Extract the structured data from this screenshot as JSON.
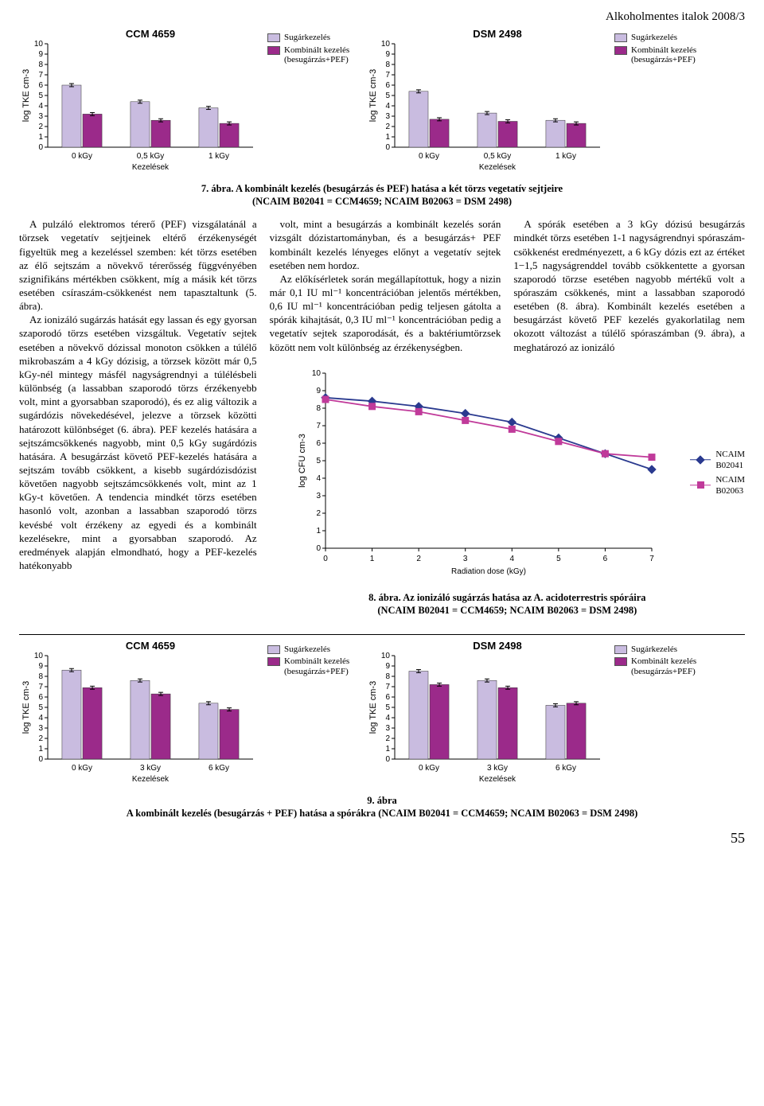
{
  "header": {
    "title": "Alkoholmentes italok 2008/3"
  },
  "page_number": "55",
  "colors": {
    "bar_light": "#c9bce0",
    "bar_dark": "#9b2a8a",
    "line_blue": "#2a3a8f",
    "line_magenta": "#c03a9a",
    "marker_blue": "#2a3a8f",
    "marker_magenta": "#c03a9a",
    "grid": "#000000",
    "bg": "#ffffff"
  },
  "legend_bar": {
    "item1": "Sugárkezelés",
    "item2": "Kombinált kezelés",
    "item2b": "(besugárzás+PEF)"
  },
  "fig7": {
    "caption1": "7. ábra. A kombinált kezelés (besugárzás és PEF) hatása a két törzs vegetatív sejtjeire",
    "caption2": "(NCAIM B02041 = CCM4659; NCAIM B02063 = DSM 2498)",
    "left": {
      "title": "CCM 4659",
      "ylabel": "log TKE cm-3",
      "xlabel": "Kezelések",
      "categories": [
        "0 kGy",
        "0,5 kGy",
        "1 kGy"
      ],
      "series1": [
        6.0,
        4.4,
        3.8
      ],
      "series2": [
        3.2,
        2.6,
        2.3
      ],
      "ylim": [
        0,
        10
      ],
      "yticks": [
        0,
        1,
        2,
        3,
        4,
        5,
        6,
        7,
        8,
        9,
        10
      ]
    },
    "right": {
      "title": "DSM 2498",
      "ylabel": "log TKE cm-3",
      "xlabel": "Kezelések",
      "categories": [
        "0 kGy",
        "0,5 kGy",
        "1 kGy"
      ],
      "series1": [
        5.4,
        3.3,
        2.6
      ],
      "series2": [
        2.7,
        2.5,
        2.3
      ],
      "ylim": [
        0,
        10
      ],
      "yticks": [
        0,
        1,
        2,
        3,
        4,
        5,
        6,
        7,
        8,
        9,
        10
      ]
    }
  },
  "fig8": {
    "title": "",
    "ylabel": "log CFU cm-3",
    "xlabel": "Radiation dose (kGy)",
    "xticks": [
      0,
      1,
      2,
      3,
      4,
      5,
      6,
      7
    ],
    "yticks": [
      0,
      1,
      2,
      3,
      4,
      5,
      6,
      7,
      8,
      9,
      10
    ],
    "series_blue": {
      "label": "NCAIM",
      "label2": "B02041",
      "x": [
        0,
        1,
        2,
        3,
        4,
        5,
        6,
        7
      ],
      "y": [
        8.6,
        8.4,
        8.1,
        7.7,
        7.2,
        6.3,
        5.4,
        4.5
      ]
    },
    "series_mag": {
      "label": "NCAIM",
      "label2": "B02063",
      "x": [
        0,
        1,
        2,
        3,
        4,
        5,
        6,
        7
      ],
      "y": [
        8.5,
        8.1,
        7.8,
        7.3,
        6.8,
        6.1,
        5.4,
        5.2
      ]
    },
    "caption1": "8. ábra. Az ionizáló sugárzás hatása az A. acidoterrestris spóráira",
    "caption2": "(NCAIM B02041 = CCM4659; NCAIM B02063 = DSM 2498)"
  },
  "fig9": {
    "caption1": "9. ábra",
    "caption2": "A kombinált kezelés (besugárzás + PEF) hatása a spórákra (NCAIM B02041 = CCM4659; NCAIM B02063 = DSM 2498)",
    "left": {
      "title": "CCM 4659",
      "ylabel": "log TKE cm-3",
      "xlabel": "Kezelések",
      "categories": [
        "0 kGy",
        "3 kGy",
        "6 kGy"
      ],
      "series1": [
        8.6,
        7.6,
        5.4
      ],
      "series2": [
        6.9,
        6.3,
        4.8
      ],
      "ylim": [
        0,
        10
      ],
      "yticks": [
        0,
        1,
        2,
        3,
        4,
        5,
        6,
        7,
        8,
        9,
        10
      ]
    },
    "right": {
      "title": "DSM 2498",
      "ylabel": "log TKE cm-3",
      "xlabel": "Kezelések",
      "categories": [
        "0 kGy",
        "3 kGy",
        "6 kGy"
      ],
      "series1": [
        8.5,
        7.6,
        5.2
      ],
      "series2": [
        7.2,
        6.9,
        5.4
      ],
      "ylim": [
        0,
        10
      ],
      "yticks": [
        0,
        1,
        2,
        3,
        4,
        5,
        6,
        7,
        8,
        9,
        10
      ]
    }
  },
  "body": {
    "col1_p1": "A pulzáló elektromos térerő (PEF) vizsgálatánál a törzsek vegetatív sejtjeinek eltérő érzékenységét figyeltük meg a kezeléssel szemben: két törzs esetében az élő sejtszám a növekvő térerősség függvényében szignifikáns mértékben csökkent, míg a másik két törzs esetében csíraszám-csökkenést nem tapasztaltunk (5. ábra).",
    "col1_p2": "Az ionizáló sugárzás hatását egy lassan és egy gyorsan szaporodó törzs esetében vizsgáltuk. Vegetatív sejtek esetében a növekvő dózissal monoton csökken a túlélő mikrobaszám a 4 kGy dózisig, a törzsek között már 0,5 kGy-nél mintegy másfél nagyságrendnyi a túlélésbeli különbség (a lassabban szaporodó törzs érzékenyebb volt, mint a gyorsabban szaporodó), és ez alig változik a sugárdózis növekedésével, jelezve a törzsek közötti határozott különbséget (6. ábra). PEF kezelés hatására a sejtszámcsökkenés nagyobb, mint 0,5 kGy sugárdózis hatására. A besugárzást követő PEF-kezelés hatására a sejtszám tovább csökkent, a kisebb sugárdózisdózist követően nagyobb sejtszámcsökkenés volt, mint az 1 kGy-t követően. A tendencia mindkét törzs esetében hasonló volt, azonban a lassabban szaporodó törzs kevésbé volt érzékeny az egyedi és a kombinált kezelésekre, mint a gyorsabban szaporodó. Az eredmények alapján elmondható, hogy a PEF-kezelés hatékonyabb",
    "col2_p1": "volt, mint a besugárzás a kombinált kezelés során vizsgált dózistartományban, és a besugárzás+ PEF kombinált kezelés lényeges előnyt a vegetatív sejtek esetében nem hordoz.",
    "col2_p2": "Az előkísérletek során megállapítottuk, hogy a nizin már 0,1 IU ml⁻¹ koncentrációban jelentős mértékben, 0,6 IU ml⁻¹ koncentrációban pedig teljesen gátolta a spórák kihajtását, 0,3 IU ml⁻¹ koncentrációban pedig a vegetatív sejtek szaporodását, és a baktériumtörzsek között nem volt különbség az érzékenységben.",
    "col3_p1": "A spórák esetében a 3 kGy dózisú besugárzás mindkét törzs esetében 1-1 nagyságrendnyi spóraszám-csökkenést eredményezett, a 6 kGy dózis ezt az értéket 1−1,5 nagyságrenddel tovább csökkentette a gyorsan szaporodó törzse esetében nagyobb mértékű volt a spóraszám csökkenés, mint a lassabban szaporodó esetében (8. ábra). Kombinált kezelés esetében a besugárzást követő PEF kezelés gyakorlatilag nem okozott változást a túlélő spóraszámban (9. ábra), a meghatározó az ionizáló"
  }
}
